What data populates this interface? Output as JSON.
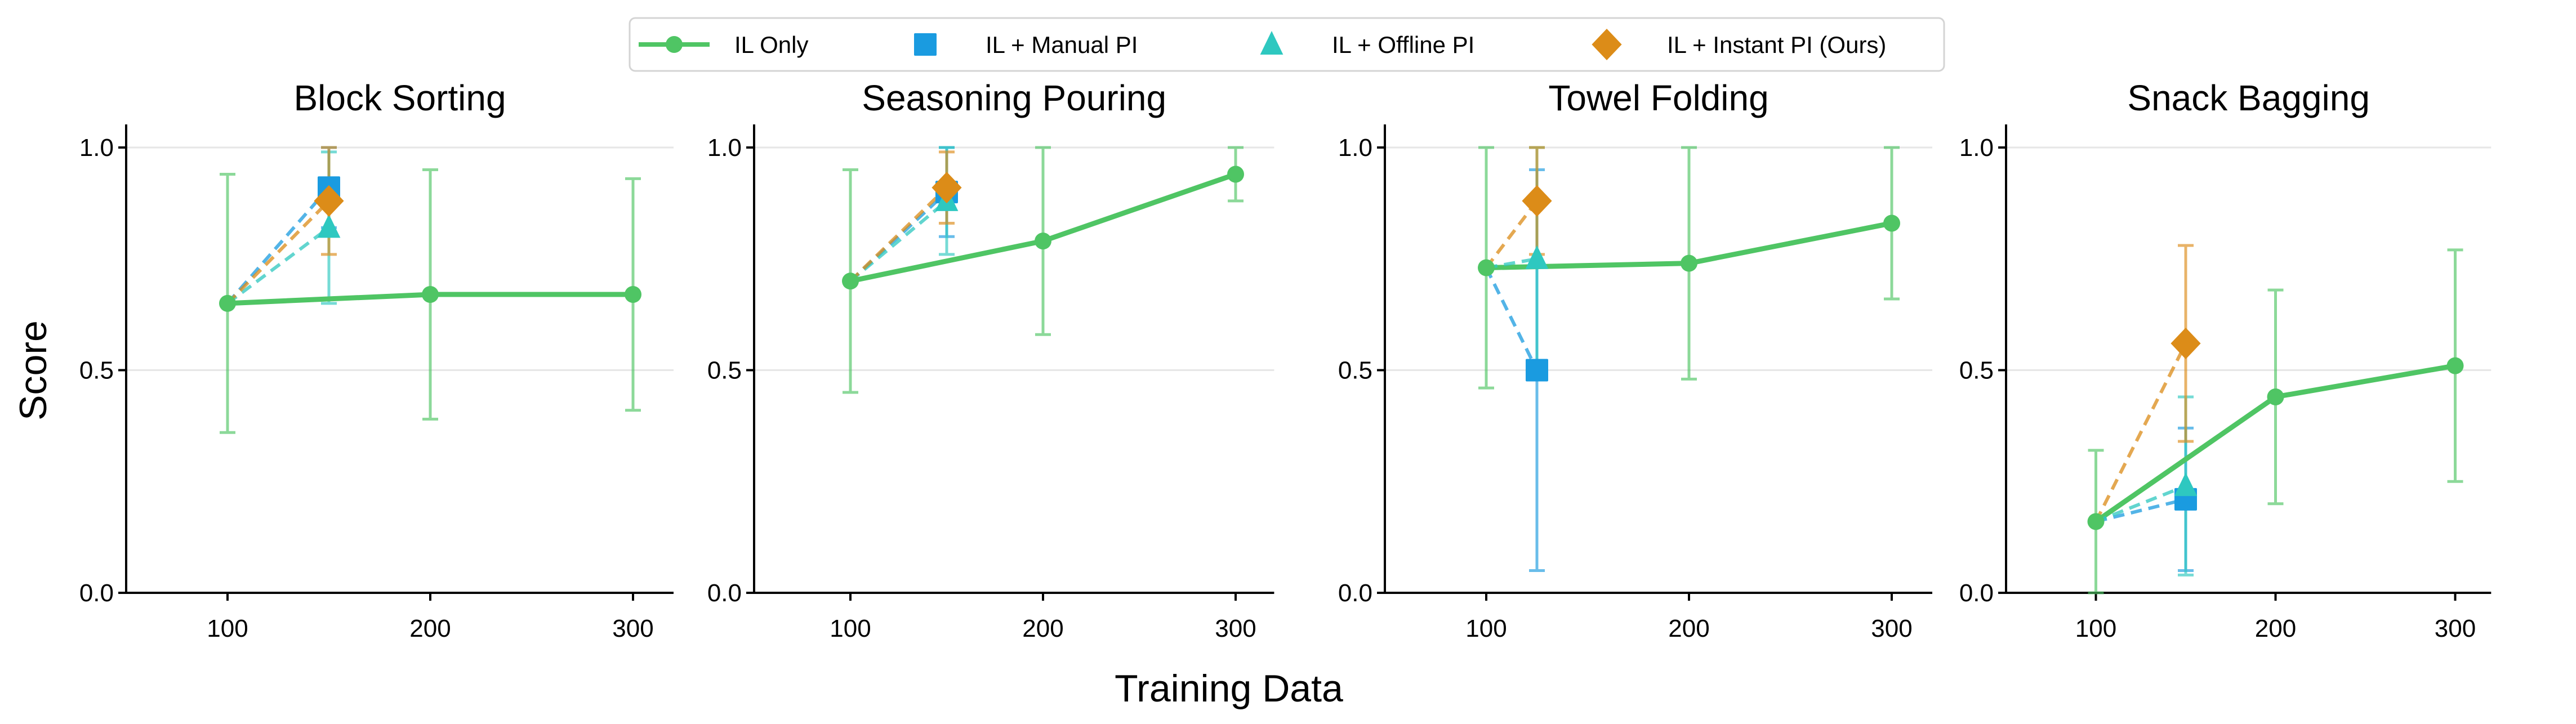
{
  "chart_data": {
    "type": "line",
    "xlabel": "Training Data",
    "ylabel": "Score",
    "xlim": [
      50,
      320
    ],
    "ylim": [
      0,
      1.05
    ],
    "xticks": [
      100,
      200,
      300
    ],
    "yticks": [
      0.0,
      0.5,
      1.0
    ],
    "ytick_labels": [
      "0.0",
      "0.5",
      "1.0"
    ],
    "grid": "horizontal",
    "legend_placement": "top-center",
    "legend": [
      {
        "name": "IL Only",
        "color": "#4fc564",
        "marker": "circle",
        "style": "solid"
      },
      {
        "name": "IL + Manual PI",
        "color": "#1a9be0",
        "marker": "square",
        "style": "dashed"
      },
      {
        "name": "IL + Offline PI",
        "color": "#2ec8c0",
        "marker": "triangle",
        "style": "dashed"
      },
      {
        "name": "IL + Instant PI (Ours)",
        "color": "#dc8c18",
        "marker": "diamond",
        "style": "dashed"
      }
    ],
    "panels": [
      {
        "title": "Block Sorting",
        "il_only": {
          "x": [
            100,
            200,
            300
          ],
          "y": [
            0.65,
            0.67,
            0.67
          ],
          "err_low": [
            0.36,
            0.39,
            0.41
          ],
          "err_high": [
            0.94,
            0.95,
            0.93
          ]
        },
        "manual_pi": {
          "x": 150,
          "y": 0.91,
          "err_low": 0.82,
          "err_high": 1.0
        },
        "offline_pi": {
          "x": 150,
          "y": 0.82,
          "err_low": 0.65,
          "err_high": 0.99
        },
        "instant_pi": {
          "x": 150,
          "y": 0.88,
          "err_low": 0.76,
          "err_high": 1.0
        }
      },
      {
        "title": "Seasoning Pouring",
        "il_only": {
          "x": [
            100,
            200,
            300
          ],
          "y": [
            0.7,
            0.79,
            0.94
          ],
          "err_low": [
            0.45,
            0.58,
            0.88
          ],
          "err_high": [
            0.95,
            1.0,
            1.0
          ]
        },
        "manual_pi": {
          "x": 150,
          "y": 0.9,
          "err_low": 0.8,
          "err_high": 1.0
        },
        "offline_pi": {
          "x": 150,
          "y": 0.88,
          "err_low": 0.76,
          "err_high": 1.0
        },
        "instant_pi": {
          "x": 150,
          "y": 0.91,
          "err_low": 0.83,
          "err_high": 0.99
        }
      },
      {
        "title": "Towel Folding",
        "il_only": {
          "x": [
            100,
            200,
            300
          ],
          "y": [
            0.73,
            0.74,
            0.83
          ],
          "err_low": [
            0.46,
            0.48,
            0.66
          ],
          "err_high": [
            1.0,
            1.0,
            1.0
          ]
        },
        "manual_pi": {
          "x": 125,
          "y": 0.5,
          "err_low": 0.05,
          "err_high": 0.95
        },
        "offline_pi": {
          "x": 125,
          "y": 0.75,
          "err_low": 0.5,
          "err_high": 1.0
        },
        "instant_pi": {
          "x": 125,
          "y": 0.88,
          "err_low": 0.76,
          "err_high": 1.0
        }
      },
      {
        "title": "Snack Bagging",
        "il_only": {
          "x": [
            100,
            200,
            300
          ],
          "y": [
            0.16,
            0.44,
            0.51
          ],
          "err_low": [
            0.0,
            0.2,
            0.25
          ],
          "err_high": [
            0.32,
            0.68,
            0.77
          ]
        },
        "manual_pi": {
          "x": 150,
          "y": 0.21,
          "err_low": 0.05,
          "err_high": 0.37
        },
        "offline_pi": {
          "x": 150,
          "y": 0.24,
          "err_low": 0.04,
          "err_high": 0.44
        },
        "instant_pi": {
          "x": 150,
          "y": 0.56,
          "err_low": 0.34,
          "err_high": 0.78
        }
      }
    ]
  }
}
